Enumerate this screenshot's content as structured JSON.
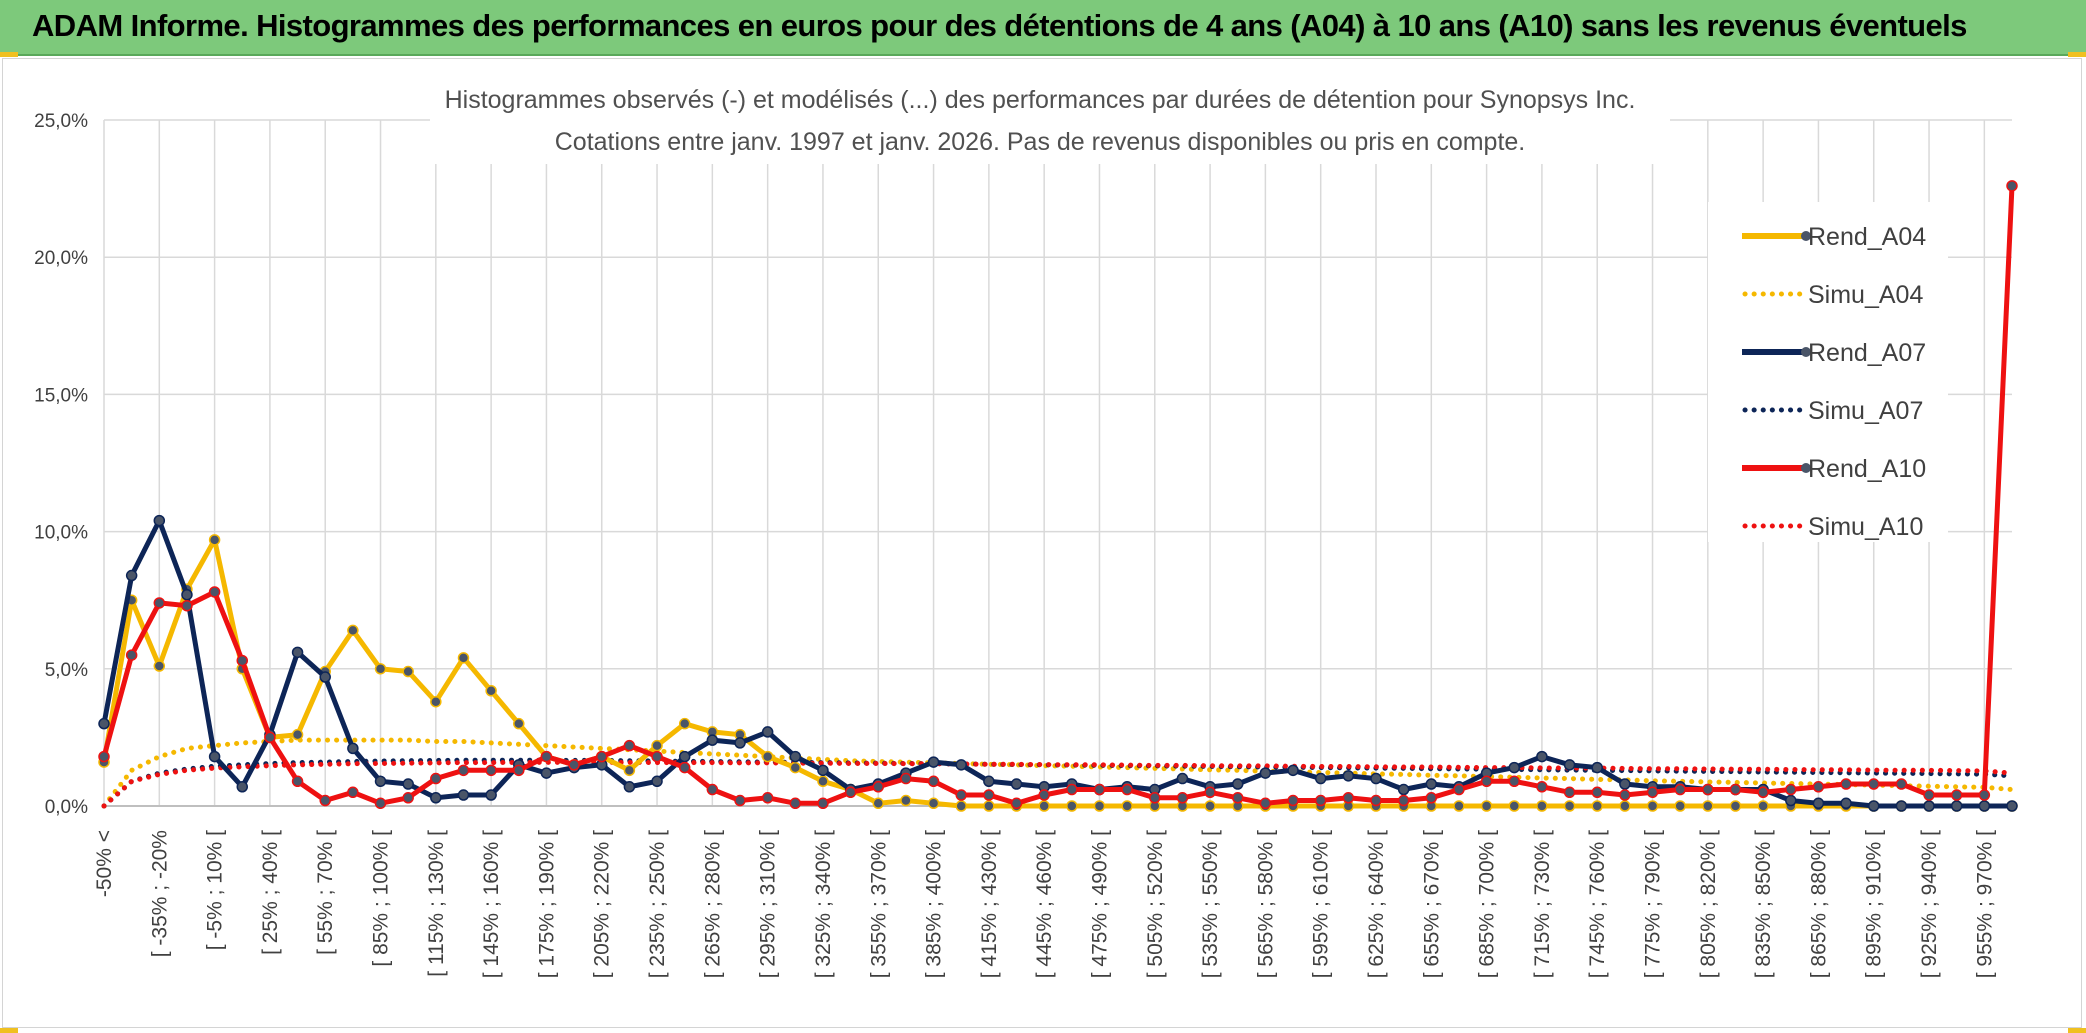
{
  "header": {
    "title": "ADAM Informe. Histogrammes des performances en euros pour des détentions de 4 ans (A04) à 10 ans (A10) sans les revenus éventuels"
  },
  "chart_data": {
    "type": "line",
    "title_line1": "Histogrammes observés (-) et modélisés (...) des performances par durées de détention pour Synopsys Inc.",
    "title_line2": "Cotations entre janv. 1997 et janv. 2026. Pas de revenus disponibles ou pris en compte.",
    "ylim": [
      0,
      25
    ],
    "y_ticks": [
      "0,0%",
      "5,0%",
      "10,0%",
      "15,0%",
      "20,0%",
      "25,0%"
    ],
    "x_tick_labels": [
      "-50% <",
      "[ -35% ; -20%",
      "[ -5% ; 10% [",
      "[ 25% ; 40% [",
      "[ 55% ; 70% [",
      "[ 85% ; 100% [",
      "[ 115% ; 130% [",
      "[ 145% ; 160% [",
      "[ 175% ; 190% [",
      "[ 205% ; 220% [",
      "[ 235% ; 250% [",
      "[ 265% ; 280% [",
      "[ 295% ; 310% [",
      "[ 325% ; 340% [",
      "[ 355% ; 370% [",
      "[ 385% ; 400% [",
      "[ 415% ; 430% [",
      "[ 445% ; 460% [",
      "[ 475% ; 490% [",
      "[ 505% ; 520% [",
      "[ 535% ; 550% [",
      "[ 565% ; 580% [",
      "[ 595% ; 610% [",
      "[ 625% ; 640% [",
      "[ 655% ; 670% [",
      "[ 685% ; 700% [",
      "[ 715% ; 730% [",
      "[ 745% ; 760% [",
      "[ 775% ; 790% [",
      "[ 805% ; 820% [",
      "[ 835% ; 850% [",
      "[ 865% ; 880% [",
      "[ 895% ; 910% [",
      "[ 925% ; 940% [",
      "[ 955% ; 970% ["
    ],
    "n_points": 70,
    "series": [
      {
        "name": "Rend_A04",
        "style": "solid",
        "color": "#f5b800",
        "values": [
          1.6,
          7.5,
          5.1,
          7.9,
          9.7,
          5.0,
          2.5,
          2.6,
          4.9,
          6.4,
          5.0,
          4.9,
          3.8,
          5.4,
          4.2,
          3.0,
          1.8,
          1.5,
          1.8,
          1.3,
          2.2,
          3.0,
          2.7,
          2.6,
          1.8,
          1.4,
          0.9,
          0.6,
          0.1,
          0.2,
          0.1,
          0.0,
          0.0,
          0.0,
          0.0,
          0.0,
          0.0,
          0.0,
          0.0,
          0.0,
          0.0,
          0.0,
          0.0,
          0.0,
          0.0,
          0.0,
          0.0,
          0.0,
          0.0,
          0.0,
          0.0,
          0.0,
          0.0,
          0.0,
          0.0,
          0.0,
          0.0,
          0.0,
          0.0,
          0.0,
          0.0,
          0.0,
          0.0,
          0.0,
          0.0,
          0.0,
          0.0,
          0.0,
          0.0,
          0.0
        ]
      },
      {
        "name": "Simu_A04",
        "style": "dotted",
        "color": "#f5b800",
        "values": [
          0.0,
          1.3,
          1.8,
          2.1,
          2.2,
          2.3,
          2.35,
          2.4,
          2.4,
          2.4,
          2.4,
          2.4,
          2.35,
          2.35,
          2.3,
          2.25,
          2.2,
          2.15,
          2.1,
          2.05,
          2.0,
          1.95,
          1.9,
          1.85,
          1.8,
          1.75,
          1.7,
          1.65,
          1.62,
          1.6,
          1.57,
          1.55,
          1.52,
          1.5,
          1.47,
          1.45,
          1.42,
          1.4,
          1.37,
          1.35,
          1.32,
          1.3,
          1.27,
          1.25,
          1.22,
          1.2,
          1.17,
          1.15,
          1.12,
          1.1,
          1.07,
          1.05,
          1.02,
          1.0,
          0.97,
          0.95,
          0.92,
          0.9,
          0.88,
          0.86,
          0.84,
          0.82,
          0.8,
          0.78,
          0.76,
          0.74,
          0.72,
          0.7,
          0.68,
          0.6
        ]
      },
      {
        "name": "Rend_A07",
        "style": "solid",
        "color": "#0d2557",
        "values": [
          3.0,
          8.4,
          10.4,
          7.7,
          1.8,
          0.7,
          2.6,
          5.6,
          4.7,
          2.1,
          0.9,
          0.8,
          0.3,
          0.4,
          0.4,
          1.5,
          1.2,
          1.4,
          1.5,
          0.7,
          0.9,
          1.8,
          2.4,
          2.3,
          2.7,
          1.8,
          1.3,
          0.6,
          0.8,
          1.2,
          1.6,
          1.5,
          0.9,
          0.8,
          0.7,
          0.8,
          0.6,
          0.7,
          0.6,
          1.0,
          0.7,
          0.8,
          1.2,
          1.3,
          1.0,
          1.1,
          1.0,
          0.6,
          0.8,
          0.7,
          1.2,
          1.4,
          1.8,
          1.5,
          1.4,
          0.8,
          0.7,
          0.7,
          0.6,
          0.6,
          0.6,
          0.2,
          0.1,
          0.1,
          0.0,
          0.0,
          0.0,
          0.0,
          0.0,
          0.0
        ]
      },
      {
        "name": "Simu_A07",
        "style": "dotted",
        "color": "#0d2557",
        "values": [
          0.0,
          0.9,
          1.2,
          1.35,
          1.45,
          1.5,
          1.55,
          1.58,
          1.6,
          1.62,
          1.64,
          1.65,
          1.66,
          1.67,
          1.67,
          1.67,
          1.67,
          1.66,
          1.66,
          1.65,
          1.64,
          1.63,
          1.62,
          1.61,
          1.6,
          1.59,
          1.58,
          1.57,
          1.56,
          1.55,
          1.54,
          1.53,
          1.52,
          1.51,
          1.5,
          1.49,
          1.48,
          1.47,
          1.46,
          1.45,
          1.44,
          1.43,
          1.42,
          1.41,
          1.4,
          1.39,
          1.38,
          1.37,
          1.36,
          1.35,
          1.34,
          1.33,
          1.32,
          1.31,
          1.3,
          1.29,
          1.28,
          1.27,
          1.26,
          1.25,
          1.24,
          1.23,
          1.22,
          1.21,
          1.2,
          1.19,
          1.18,
          1.17,
          1.16,
          1.1
        ]
      },
      {
        "name": "Rend_A10",
        "style": "solid",
        "color": "#ee1111",
        "values": [
          1.8,
          5.5,
          7.4,
          7.3,
          7.8,
          5.3,
          2.5,
          0.9,
          0.2,
          0.5,
          0.1,
          0.3,
          1.0,
          1.3,
          1.3,
          1.3,
          1.8,
          1.5,
          1.8,
          2.2,
          1.8,
          1.4,
          0.6,
          0.2,
          0.3,
          0.1,
          0.1,
          0.5,
          0.7,
          1.0,
          0.9,
          0.4,
          0.4,
          0.1,
          0.4,
          0.6,
          0.6,
          0.6,
          0.3,
          0.3,
          0.5,
          0.3,
          0.1,
          0.2,
          0.2,
          0.3,
          0.2,
          0.2,
          0.3,
          0.6,
          0.9,
          0.9,
          0.7,
          0.5,
          0.5,
          0.4,
          0.5,
          0.6,
          0.6,
          0.6,
          0.5,
          0.6,
          0.7,
          0.8,
          0.8,
          0.8,
          0.4,
          0.4,
          0.4,
          22.6
        ]
      },
      {
        "name": "Simu_A10",
        "style": "dotted",
        "color": "#ee1111",
        "values": [
          0.0,
          0.9,
          1.15,
          1.3,
          1.38,
          1.43,
          1.47,
          1.5,
          1.52,
          1.54,
          1.55,
          1.56,
          1.57,
          1.58,
          1.58,
          1.59,
          1.59,
          1.59,
          1.59,
          1.59,
          1.58,
          1.58,
          1.58,
          1.57,
          1.57,
          1.56,
          1.56,
          1.55,
          1.55,
          1.54,
          1.54,
          1.53,
          1.52,
          1.52,
          1.51,
          1.5,
          1.5,
          1.49,
          1.48,
          1.48,
          1.47,
          1.46,
          1.46,
          1.45,
          1.44,
          1.44,
          1.43,
          1.42,
          1.42,
          1.41,
          1.4,
          1.4,
          1.39,
          1.38,
          1.38,
          1.37,
          1.36,
          1.36,
          1.35,
          1.34,
          1.34,
          1.33,
          1.32,
          1.32,
          1.31,
          1.3,
          1.3,
          1.29,
          1.28,
          1.2
        ]
      }
    ],
    "legend_position": "right"
  }
}
